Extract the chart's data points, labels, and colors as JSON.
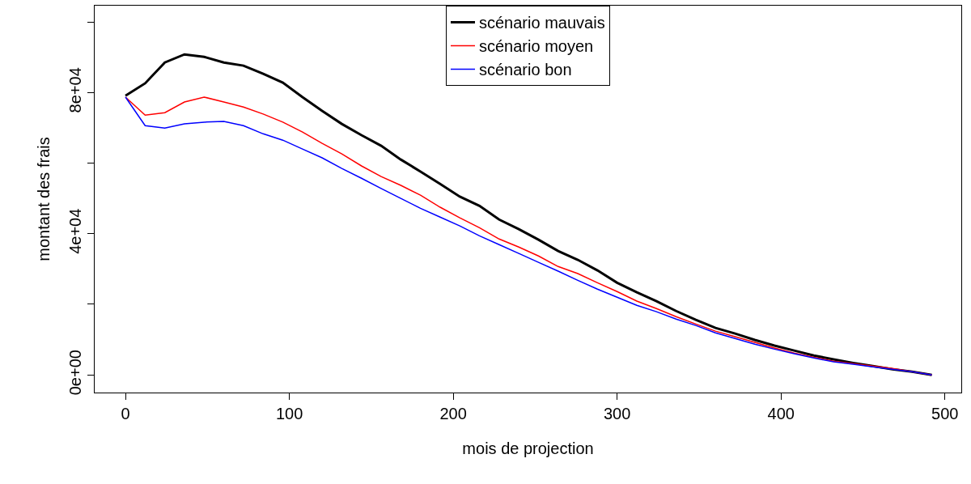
{
  "chart_data": {
    "type": "line",
    "xlabel": "mois de projection",
    "ylabel": "montant des frais",
    "x": [
      0,
      12,
      24,
      36,
      48,
      60,
      72,
      84,
      96,
      108,
      120,
      132,
      144,
      156,
      168,
      180,
      192,
      204,
      216,
      228,
      240,
      252,
      264,
      276,
      288,
      300,
      312,
      324,
      336,
      348,
      360,
      372,
      384,
      396,
      408,
      420,
      432,
      444,
      456,
      468,
      480,
      492
    ],
    "series": [
      {
        "name": "scénario mauvais",
        "color": "#000000",
        "values": [
          79100,
          82600,
          88500,
          90800,
          90100,
          88500,
          87600,
          85300,
          82800,
          78700,
          74800,
          71100,
          67900,
          64900,
          61000,
          57600,
          54100,
          50500,
          47900,
          44000,
          41300,
          38300,
          35100,
          32600,
          29600,
          26100,
          23400,
          20900,
          18100,
          15600,
          13300,
          11700,
          9900,
          8300,
          6900,
          5500,
          4400,
          3400,
          2500,
          1600,
          900,
          0
        ]
      },
      {
        "name": "scénario moyen",
        "color": "#ff0000",
        "values": [
          78700,
          73600,
          74300,
          77300,
          78700,
          77300,
          75900,
          73900,
          71600,
          68800,
          65600,
          62600,
          59200,
          56200,
          53700,
          50900,
          47500,
          44500,
          41700,
          38500,
          36200,
          33700,
          30700,
          28700,
          26100,
          23600,
          20900,
          18800,
          16500,
          14400,
          12400,
          10800,
          9200,
          7600,
          6200,
          5000,
          3900,
          3200,
          2500,
          1800,
          900,
          0
        ]
      },
      {
        "name": "scénario bon",
        "color": "#0000ff",
        "values": [
          78700,
          70600,
          69900,
          71100,
          71600,
          71800,
          70600,
          68300,
          66500,
          64000,
          61500,
          58500,
          55700,
          52800,
          50000,
          47200,
          44700,
          42200,
          39400,
          36900,
          34400,
          31900,
          29400,
          26800,
          24300,
          22000,
          19700,
          17900,
          15800,
          14000,
          11900,
          10300,
          8700,
          7300,
          6000,
          4800,
          3700,
          3000,
          2300,
          1600,
          900,
          0
        ]
      }
    ],
    "xlim": [
      -18.8,
      510
    ],
    "ylim": [
      -5000,
      104600
    ],
    "xticks": [
      0,
      100,
      200,
      300,
      400,
      500
    ],
    "yticks": [
      {
        "value": 0,
        "label": "0e+00"
      },
      {
        "value": 20000,
        "label": null
      },
      {
        "value": 40000,
        "label": "4e+04"
      },
      {
        "value": 60000,
        "label": null
      },
      {
        "value": 80000,
        "label": "8e+04"
      },
      {
        "value": 100000,
        "label": null
      }
    ],
    "legend": "top",
    "marker": "none",
    "line_style": "solid"
  }
}
